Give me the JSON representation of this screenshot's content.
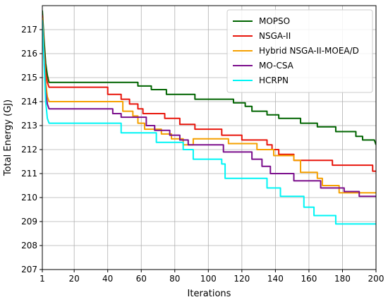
{
  "chart_data": {
    "type": "line",
    "title": "",
    "xlabel": "Iterations",
    "ylabel": "Total Energy (GJ)",
    "xlim": [
      1,
      200
    ],
    "ylim": [
      207,
      218
    ],
    "xticks": [
      1,
      20,
      40,
      60,
      80,
      100,
      120,
      140,
      160,
      180,
      200
    ],
    "yticks": [
      207,
      208,
      209,
      210,
      211,
      212,
      213,
      214,
      215,
      216,
      217
    ],
    "grid": true,
    "legend_position": "top-right",
    "series": [
      {
        "name": "MOPSO",
        "color": "#006400",
        "points": [
          [
            1,
            217.8
          ],
          [
            2,
            216.6
          ],
          [
            3,
            215.6
          ],
          [
            4,
            215.1
          ],
          [
            5,
            214.8
          ],
          [
            58,
            214.8
          ],
          [
            58,
            214.65
          ],
          [
            66,
            214.65
          ],
          [
            66,
            214.5
          ],
          [
            75,
            214.5
          ],
          [
            75,
            214.3
          ],
          [
            92,
            214.3
          ],
          [
            92,
            214.1
          ],
          [
            115,
            214.1
          ],
          [
            115,
            213.95
          ],
          [
            122,
            213.95
          ],
          [
            122,
            213.8
          ],
          [
            126,
            213.8
          ],
          [
            126,
            213.6
          ],
          [
            135,
            213.6
          ],
          [
            135,
            213.45
          ],
          [
            142,
            213.45
          ],
          [
            142,
            213.3
          ],
          [
            155,
            213.3
          ],
          [
            155,
            213.1
          ],
          [
            165,
            213.1
          ],
          [
            165,
            212.95
          ],
          [
            176,
            212.95
          ],
          [
            176,
            212.75
          ],
          [
            188,
            212.75
          ],
          [
            188,
            212.55
          ],
          [
            192,
            212.55
          ],
          [
            192,
            212.4
          ],
          [
            199,
            212.4
          ],
          [
            200,
            212.2
          ]
        ]
      },
      {
        "name": "NSGA-II",
        "color": "#e8160c",
        "points": [
          [
            1,
            217.6
          ],
          [
            2,
            216.2
          ],
          [
            3,
            215.2
          ],
          [
            4,
            214.8
          ],
          [
            5,
            214.6
          ],
          [
            40,
            214.6
          ],
          [
            40,
            214.3
          ],
          [
            48,
            214.3
          ],
          [
            48,
            214.1
          ],
          [
            53,
            214.1
          ],
          [
            53,
            213.9
          ],
          [
            58,
            213.9
          ],
          [
            58,
            213.7
          ],
          [
            61,
            213.7
          ],
          [
            61,
            213.5
          ],
          [
            74,
            213.5
          ],
          [
            74,
            213.3
          ],
          [
            83,
            213.3
          ],
          [
            83,
            213.05
          ],
          [
            92,
            213.05
          ],
          [
            92,
            212.85
          ],
          [
            108,
            212.85
          ],
          [
            108,
            212.6
          ],
          [
            120,
            212.6
          ],
          [
            120,
            212.4
          ],
          [
            135,
            212.4
          ],
          [
            135,
            212.2
          ],
          [
            138,
            212.2
          ],
          [
            138,
            212.0
          ],
          [
            142,
            212.0
          ],
          [
            142,
            211.8
          ],
          [
            151,
            211.8
          ],
          [
            151,
            211.55
          ],
          [
            174,
            211.55
          ],
          [
            174,
            211.35
          ],
          [
            198,
            211.35
          ],
          [
            198,
            211.1
          ],
          [
            200,
            211.1
          ]
        ]
      },
      {
        "name": "Hybrid NSGA-II-MOEA/D",
        "color": "#f5a000",
        "points": [
          [
            1,
            217.5
          ],
          [
            2,
            216.0
          ],
          [
            3,
            214.8
          ],
          [
            4,
            214.2
          ],
          [
            5,
            214.0
          ],
          [
            49,
            214.0
          ],
          [
            49,
            213.6
          ],
          [
            55,
            213.6
          ],
          [
            55,
            213.4
          ],
          [
            58,
            213.4
          ],
          [
            58,
            213.1
          ],
          [
            62,
            213.1
          ],
          [
            62,
            212.85
          ],
          [
            72,
            212.85
          ],
          [
            72,
            212.65
          ],
          [
            78,
            212.65
          ],
          [
            78,
            212.45
          ],
          [
            85,
            212.45
          ],
          [
            85,
            212.2
          ],
          [
            91,
            212.2
          ],
          [
            91,
            212.45
          ],
          [
            112,
            212.45
          ],
          [
            112,
            212.25
          ],
          [
            129,
            212.25
          ],
          [
            129,
            212.0
          ],
          [
            139,
            212.0
          ],
          [
            139,
            211.75
          ],
          [
            151,
            211.75
          ],
          [
            151,
            211.55
          ],
          [
            155,
            211.55
          ],
          [
            155,
            211.05
          ],
          [
            165,
            211.05
          ],
          [
            165,
            210.8
          ],
          [
            168,
            210.8
          ],
          [
            168,
            210.5
          ],
          [
            178,
            210.5
          ],
          [
            178,
            210.2
          ],
          [
            200,
            210.2
          ]
        ]
      },
      {
        "name": "MO-CSA",
        "color": "#7b0e8c",
        "points": [
          [
            1,
            217.3
          ],
          [
            2,
            215.8
          ],
          [
            3,
            214.4
          ],
          [
            4,
            213.9
          ],
          [
            5,
            213.7
          ],
          [
            43,
            213.7
          ],
          [
            43,
            213.5
          ],
          [
            48,
            213.5
          ],
          [
            48,
            213.35
          ],
          [
            63,
            213.35
          ],
          [
            63,
            213.0
          ],
          [
            68,
            213.0
          ],
          [
            68,
            212.8
          ],
          [
            77,
            212.8
          ],
          [
            77,
            212.6
          ],
          [
            83,
            212.6
          ],
          [
            83,
            212.4
          ],
          [
            88,
            212.4
          ],
          [
            88,
            212.2
          ],
          [
            109,
            212.2
          ],
          [
            109,
            211.9
          ],
          [
            126,
            211.9
          ],
          [
            126,
            211.6
          ],
          [
            132,
            211.6
          ],
          [
            132,
            211.3
          ],
          [
            137,
            211.3
          ],
          [
            137,
            211.0
          ],
          [
            151,
            211.0
          ],
          [
            151,
            210.7
          ],
          [
            167,
            210.7
          ],
          [
            167,
            210.4
          ],
          [
            181,
            210.4
          ],
          [
            181,
            210.25
          ],
          [
            190,
            210.25
          ],
          [
            190,
            210.05
          ],
          [
            200,
            210.05
          ]
        ]
      },
      {
        "name": "HCRPN",
        "color": "#00f5f5",
        "points": [
          [
            1,
            217.4
          ],
          [
            2,
            215.7
          ],
          [
            3,
            214.0
          ],
          [
            4,
            213.3
          ],
          [
            5,
            213.1
          ],
          [
            48,
            213.1
          ],
          [
            48,
            212.7
          ],
          [
            69,
            212.7
          ],
          [
            69,
            212.3
          ],
          [
            85,
            212.3
          ],
          [
            85,
            212.0
          ],
          [
            91,
            212.0
          ],
          [
            91,
            211.6
          ],
          [
            108,
            211.6
          ],
          [
            108,
            211.4
          ],
          [
            110,
            211.4
          ],
          [
            110,
            210.8
          ],
          [
            135,
            210.8
          ],
          [
            135,
            210.4
          ],
          [
            143,
            210.4
          ],
          [
            143,
            210.05
          ],
          [
            157,
            210.05
          ],
          [
            157,
            209.6
          ],
          [
            163,
            209.6
          ],
          [
            163,
            209.25
          ],
          [
            176,
            209.25
          ],
          [
            176,
            208.9
          ],
          [
            200,
            208.9
          ]
        ]
      }
    ]
  }
}
